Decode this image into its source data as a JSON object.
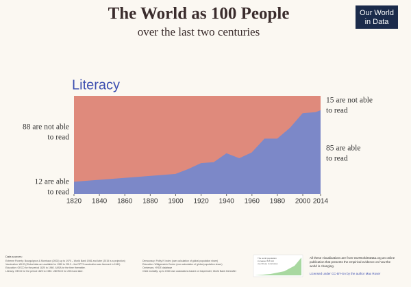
{
  "header": {
    "title": "The World as 100 People",
    "subtitle": "over the last two centuries",
    "logo": [
      "Our World",
      "in Data"
    ]
  },
  "chart_data": {
    "type": "area",
    "title": "Literacy",
    "x": [
      1820,
      1870,
      1900,
      1910,
      1920,
      1930,
      1940,
      1950,
      1960,
      1970,
      1980,
      1990,
      2000,
      2010,
      2014
    ],
    "series": [
      {
        "name": "able to read",
        "color": "#7c88c8",
        "values": [
          12,
          17,
          20,
          25,
          31,
          32,
          41,
          36,
          42,
          56,
          56,
          67,
          82,
          83,
          85
        ]
      }
    ],
    "background_color": "#df8a7c",
    "xlim": [
      1820,
      2014
    ],
    "ylim": [
      0,
      100
    ],
    "xticks": [
      1820,
      1840,
      1860,
      1880,
      1900,
      1920,
      1940,
      1960,
      1980,
      2000,
      2014
    ],
    "annotations": {
      "start_not_able": [
        "88 are not able",
        "to read"
      ],
      "start_able": [
        "12 are able",
        "to read"
      ],
      "end_not_able": [
        "15 are not able",
        "to read"
      ],
      "end_able": [
        "85 are able",
        "to read"
      ]
    }
  },
  "footer": {
    "sources_title": "Data sources:",
    "sources": [
      "Extreme Poverty: Bourguignon & Morrisson (2002) up to 1970 – World Bank 1981 and later (2015 is a projection)",
      "Vaccination: WHO (Global data are available for 1980 to 2013 – the DPT3 vaccination was licensed in 1949)",
      "Education: OECD for the period 1820 to 1960. IIASA for the time thereafter.",
      "Literacy: OECD for the period 1820 to 1980. UNESCO for 2004 and later."
    ],
    "sources2": [
      "Democracy: Polity IV index (own calculation of global population share)",
      "Education: Wittgenstein Centre (own calculation of global population share)",
      "Centenary: HYDE database",
      "Child mortality: up to 1960 own calculations based on Gapminder; World Bank thereafter"
    ],
    "inset_text": [
      "The world population",
      "increased 6.8 fold",
      "over these 2 centuries"
    ],
    "about": [
      "All these visualizations are from OurWorldInData.org an online",
      "publication that presents the empirical evidence on how the",
      "world is changing."
    ],
    "license": "Licensed under CC-BY-SA by the author Max Roser"
  }
}
